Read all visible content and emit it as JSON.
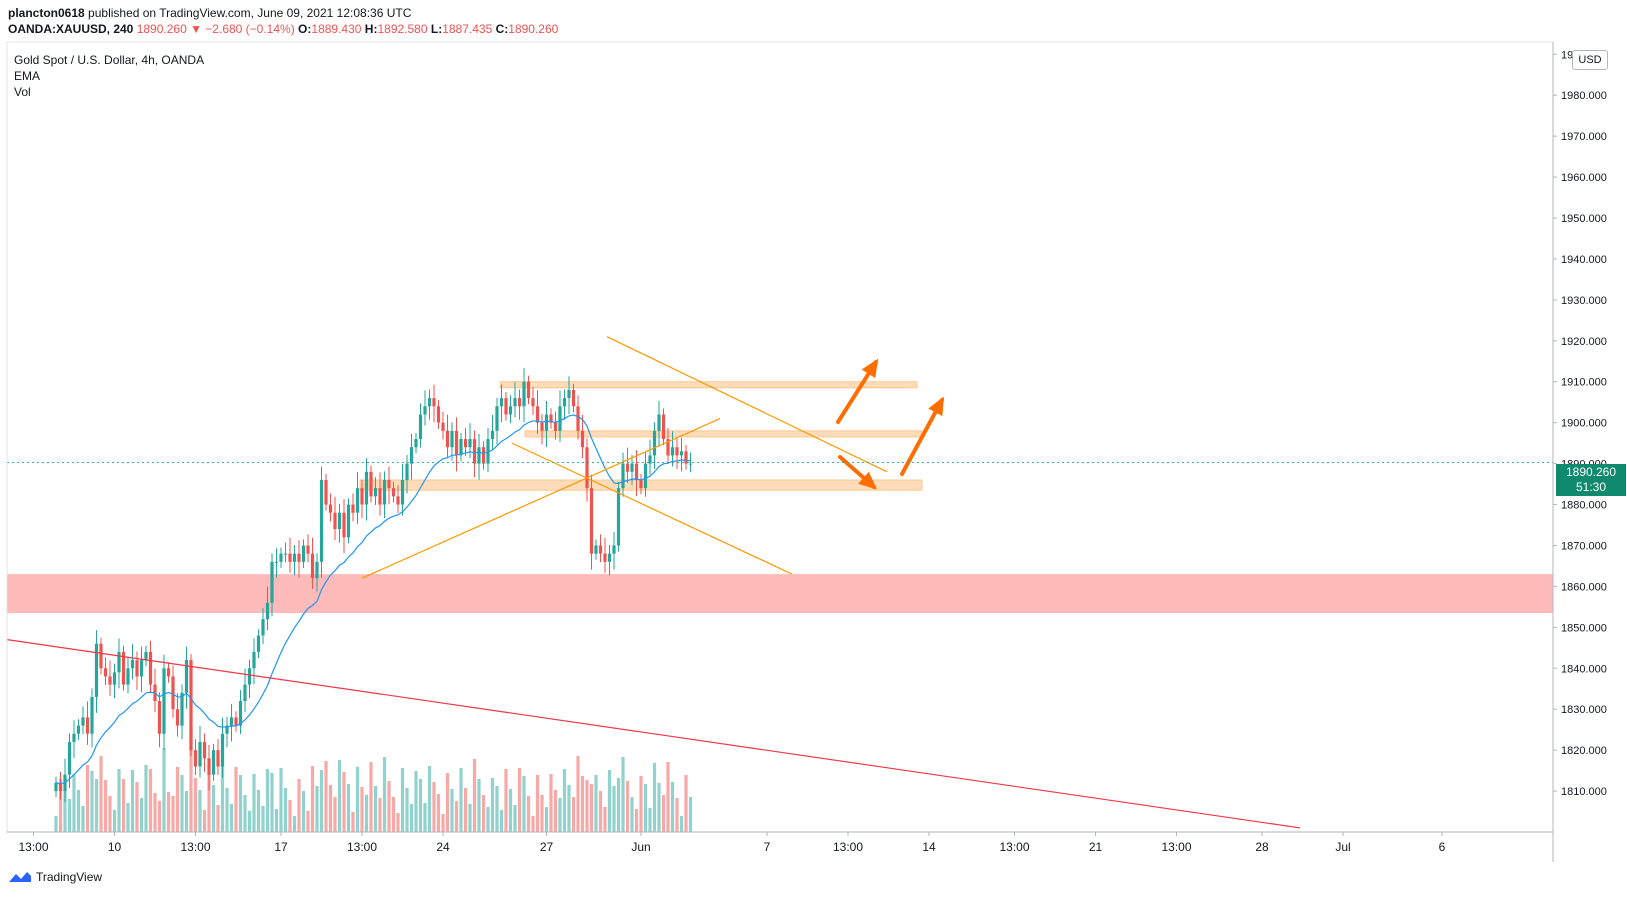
{
  "header": {
    "user": "plancton0618",
    "published": "published on TradingView.com, June 09, 2021 12:08:36 UTC",
    "symbol": "OANDA:XAUUSD, 240",
    "change": "1890.260 ▼ −2.680 (−0.14%)",
    "o_label": "O:",
    "o_val": "1889.430",
    "h_label": "H:",
    "h_val": "1892.580",
    "l_label": "L:",
    "l_val": "1887.435",
    "c_label": "C:",
    "c_val": "1890.260"
  },
  "legend": {
    "title": "Gold Spot / U.S. Dollar, 4h, OANDA",
    "ema": "EMA",
    "vol": "Vol"
  },
  "axis": {
    "currency": "USD",
    "last_price": "1890.260",
    "countdown": "51:30"
  },
  "footer": {
    "brand": "TradingView"
  },
  "colors": {
    "up": "#26a69a",
    "down": "#ef5350",
    "ema": "#2196f3",
    "trend_orange": "#ff9800",
    "trend_red": "#f23645",
    "zone_pink": "#ffb3b3",
    "zone_orange": "#ffd3a8",
    "arrow": "#ff6d00"
  },
  "chart_data": {
    "type": "candlestick",
    "ylim": [
      1800,
      1993
    ],
    "y_ticks": [
      1810,
      1820,
      1830,
      1840,
      1850,
      1860,
      1870,
      1880,
      1890,
      1900,
      1910,
      1920,
      1930,
      1940,
      1950,
      1960,
      1970,
      1980,
      1990
    ],
    "y_tick_labels": [
      "1810.000",
      "1820.000",
      "1830.000",
      "1840.000",
      "1850.000",
      "1860.000",
      "1870.000",
      "1880.000",
      "1890.000",
      "1900.000",
      "1910.000",
      "1920.000",
      "1930.000",
      "1940.000",
      "1950.000",
      "1960.000",
      "1970.000",
      "1980.000",
      "1990.000"
    ],
    "x_tick_labels": [
      "13:00",
      "10",
      "13:00",
      "17",
      "13:00",
      "24",
      "27",
      "Jun",
      "7",
      "13:00",
      "14",
      "13:00",
      "21",
      "13:00",
      "28",
      "Jul",
      "6"
    ],
    "x_tick_bars": [
      -5,
      13,
      31,
      50,
      68,
      86,
      109,
      130,
      158,
      176,
      194,
      213,
      231,
      249,
      268,
      286,
      308
    ],
    "last_close": 1890.26,
    "candles_close": [
      1812,
      1810,
      1814,
      1822,
      1824,
      1826,
      1828,
      1824,
      1833,
      1846,
      1840,
      1838,
      1836,
      1839,
      1844,
      1836,
      1840,
      1842,
      1838,
      1842,
      1844,
      1836,
      1832,
      1824,
      1840,
      1838,
      1830,
      1826,
      1834,
      1842,
      1820,
      1816,
      1822,
      1818,
      1814,
      1820,
      1816,
      1824,
      1826,
      1828,
      1826,
      1832,
      1836,
      1840,
      1844,
      1848,
      1852,
      1856,
      1866,
      1866,
      1868,
      1868,
      1866,
      1868,
      1866,
      1870,
      1868,
      1862,
      1866,
      1886,
      1880,
      1878,
      1874,
      1878,
      1872,
      1880,
      1878,
      1884,
      1880,
      1888,
      1882,
      1884,
      1880,
      1886,
      1884,
      1882,
      1880,
      1886,
      1890,
      1894,
      1896,
      1902,
      1904,
      1906,
      1904,
      1900,
      1898,
      1894,
      1898,
      1892,
      1896,
      1894,
      1896,
      1890,
      1894,
      1890,
      1896,
      1898,
      1904,
      1906,
      1902,
      1904,
      1906,
      1904,
      1910,
      1906,
      1904,
      1900,
      1898,
      1902,
      1900,
      1898,
      1904,
      1906,
      1908,
      1904,
      1898,
      1894,
      1884,
      1868,
      1870,
      1868,
      1866,
      1868,
      1870,
      1884,
      1890,
      1888,
      1890,
      1886,
      1884,
      1890,
      1892,
      1898,
      1902,
      1896,
      1892,
      1894,
      1892,
      1893,
      1890,
      1890
    ],
    "volume_scale_max": 100,
    "zones": [
      {
        "name": "support-zone",
        "from": 1853.5,
        "to": 1863
      },
      {
        "name": "zone-1884",
        "from": 1883.5,
        "to": 1886
      },
      {
        "name": "zone-1897",
        "from": 1896.5,
        "to": 1898
      },
      {
        "name": "zone-1909",
        "from": 1908.5,
        "to": 1910
      }
    ]
  }
}
